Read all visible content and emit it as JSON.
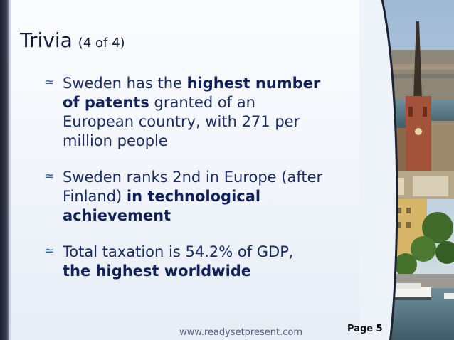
{
  "slide": {
    "title": "Trivia",
    "title_suffix": "(4 of 4)",
    "bullet_icon": "scroll-bullet-icon",
    "bullets": [
      [
        {
          "text": "Sweden has the ",
          "bold": false
        },
        {
          "text": "highest number of patents",
          "bold": true
        },
        {
          "text": " granted of an European country, with 271 per million people",
          "bold": false
        }
      ],
      [
        {
          "text": "Sweden ranks 2nd in Europe (after Finland) ",
          "bold": false
        },
        {
          "text": "in technological achievement",
          "bold": true
        }
      ],
      [
        {
          "text": "Total taxation is 54.2% of GDP, ",
          "bold": false
        },
        {
          "text": "the highest worldwide",
          "bold": true
        }
      ]
    ],
    "footer_url": "www.readysetpresent.com",
    "page_label": "Page 5"
  },
  "colors": {
    "title": "#0f1a3a",
    "body_text": "#1a2b66",
    "bullet_glyph": "#2b5aa8",
    "background": "#f1f5fb"
  }
}
